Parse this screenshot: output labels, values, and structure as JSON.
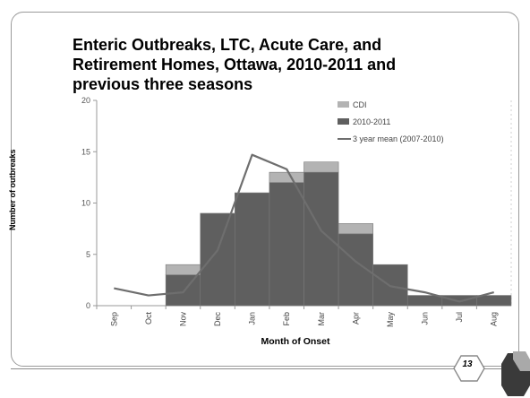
{
  "slide": {
    "title_lines": [
      "Enteric Outbreaks, LTC, Acute Care, and",
      "Retirement Homes, Ottawa, 2010-2011 and",
      "previous three seasons"
    ],
    "page_number": "13"
  },
  "colors": {
    "cdi": "#b3b3b3",
    "season": "#5f5f5f",
    "mean_line": "#6e6e6e",
    "axis": "#999999"
  },
  "chart_data": {
    "type": "bar",
    "title": "",
    "xlabel": "Month of Onset",
    "ylabel": "Number of outbreaks",
    "categories": [
      "Sep",
      "Oct",
      "Nov",
      "Dec",
      "Jan",
      "Feb",
      "Mar",
      "Apr",
      "May",
      "Jun",
      "Jul",
      "Aug"
    ],
    "ylim": [
      0,
      20
    ],
    "yticks": [
      "0",
      "5",
      "10",
      "15",
      "20"
    ],
    "stacked": true,
    "legend_position": "top-right",
    "series": [
      {
        "name": "2010-2011",
        "type": "bar",
        "color": "#5f5f5f",
        "values": [
          0,
          0,
          3,
          9,
          11,
          12,
          13,
          7,
          4,
          1,
          1,
          1
        ]
      },
      {
        "name": "CDI",
        "type": "bar",
        "color": "#b3b3b3",
        "values": [
          0,
          0,
          1,
          0,
          0,
          1,
          1,
          1,
          0,
          0,
          0,
          0
        ]
      },
      {
        "name": "3 year mean (2007-2010)",
        "type": "line",
        "color": "#6e6e6e",
        "values": [
          1.7,
          1.0,
          1.3,
          5.4,
          14.7,
          13.3,
          7.3,
          4.3,
          1.9,
          1.3,
          0.4,
          1.3
        ]
      }
    ]
  }
}
